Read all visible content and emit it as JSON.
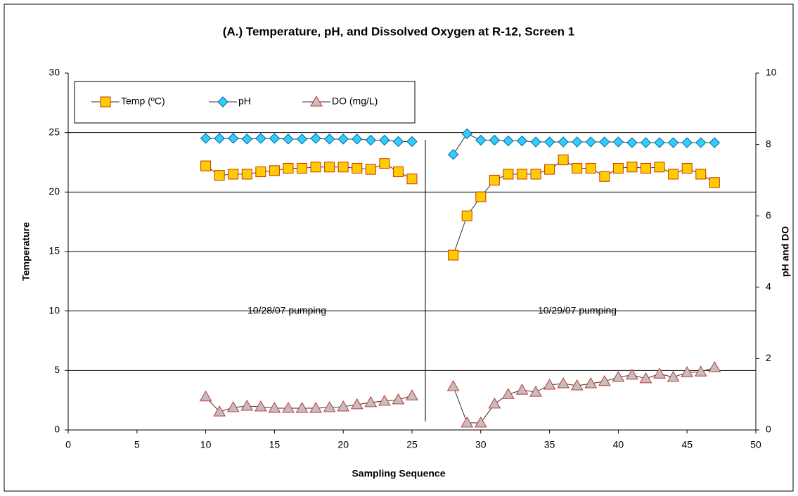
{
  "chart_data": {
    "type": "line",
    "title": "(A.)  Temperature, pH, and Dissolved Oxygen at R-12, Screen 1",
    "xlabel": "Sampling Sequence",
    "ylabel": "Temperature",
    "y2label": "pH and DO",
    "annotations": [
      "10/28/07 pumping",
      "10/29/07 pumping"
    ],
    "x": [
      10,
      11,
      12,
      13,
      14,
      15,
      16,
      17,
      18,
      19,
      20,
      21,
      22,
      23,
      24,
      25,
      26,
      28,
      29,
      30,
      31,
      32,
      33,
      34,
      35,
      36,
      37,
      38,
      39,
      40,
      41,
      42,
      43,
      44,
      45,
      46,
      47
    ],
    "series": [
      {
        "name": "Temp (ºC)",
        "marker": "square",
        "color": "#ffcc00",
        "edge": "#cc3300",
        "values": [
          22.2,
          21.4,
          21.5,
          21.5,
          21.7,
          21.8,
          22.0,
          22.0,
          22.1,
          22.1,
          22.1,
          22.0,
          21.9,
          22.4,
          21.7,
          21.1,
          null,
          14.7,
          18.0,
          19.6,
          21.0,
          21.5,
          21.5,
          21.5,
          21.9,
          22.7,
          22.0,
          22.0,
          21.3,
          22.0,
          22.1,
          22.0,
          22.1,
          21.5,
          22.0,
          21.5,
          20.8
        ]
      },
      {
        "name": "pH",
        "marker": "diamond",
        "color": "#33ccff",
        "edge": "#006699",
        "axis": "y2",
        "values": [
          8.17,
          8.17,
          8.17,
          8.15,
          8.17,
          8.17,
          8.15,
          8.15,
          8.17,
          8.15,
          8.15,
          8.15,
          8.12,
          8.12,
          8.08,
          8.08,
          null,
          7.72,
          8.3,
          8.12,
          8.12,
          8.1,
          8.1,
          8.07,
          8.07,
          8.07,
          8.07,
          8.07,
          8.07,
          8.07,
          8.05,
          8.05,
          8.05,
          8.05,
          8.05,
          8.05,
          8.05
        ]
      },
      {
        "name": "DO (mg/L)",
        "marker": "triangle",
        "color": "#c0c0c0",
        "edge": "#cc3333",
        "axis": "y2",
        "values": [
          0.93,
          0.51,
          0.63,
          0.67,
          0.65,
          0.61,
          0.61,
          0.61,
          0.61,
          0.63,
          0.65,
          0.71,
          0.77,
          0.81,
          0.85,
          0.96,
          null,
          1.22,
          0.2,
          0.2,
          0.73,
          1.0,
          1.12,
          1.06,
          1.26,
          1.3,
          1.24,
          1.3,
          1.36,
          1.48,
          1.54,
          1.44,
          1.57,
          1.48,
          1.61,
          1.63,
          1.75
        ]
      }
    ],
    "xlim": [
      0,
      50
    ],
    "xticks": [
      0,
      5,
      10,
      15,
      20,
      25,
      30,
      35,
      40,
      45,
      50
    ],
    "ylim": [
      0,
      30
    ],
    "yticks": [
      0,
      5,
      10,
      15,
      20,
      25,
      30
    ],
    "y2lim": [
      0,
      10
    ],
    "y2ticks": [
      0,
      2,
      4,
      6,
      8,
      10
    ],
    "grid": true,
    "legend": "upper left"
  }
}
